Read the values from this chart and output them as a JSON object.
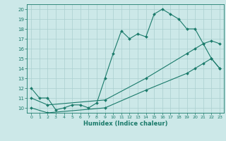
{
  "bg_color": "#cce8e8",
  "grid_color": "#aacfcf",
  "line_color": "#1a7a6a",
  "marker": "D",
  "markersize": 2.0,
  "linewidth": 0.8,
  "series1": {
    "x": [
      0,
      1,
      2,
      3,
      4,
      5,
      6,
      7,
      8,
      9,
      10,
      11,
      12,
      13,
      14,
      15,
      16,
      17,
      18,
      19,
      20,
      21,
      22,
      23
    ],
    "y": [
      12,
      11,
      11,
      9.8,
      10,
      10.3,
      10.3,
      10,
      10.5,
      13,
      15.5,
      17.8,
      17,
      17.5,
      17.2,
      19.5,
      20,
      19.5,
      19,
      18,
      18,
      16.5,
      15,
      14
    ]
  },
  "series2": {
    "x": [
      0,
      2,
      9,
      14,
      19,
      20,
      21,
      22,
      23
    ],
    "y": [
      11,
      10.3,
      10.8,
      13,
      15.5,
      16,
      16.5,
      16.8,
      16.5
    ]
  },
  "series3": {
    "x": [
      0,
      2,
      9,
      14,
      19,
      20,
      21,
      22,
      23
    ],
    "y": [
      10,
      9.5,
      10,
      11.8,
      13.5,
      14,
      14.5,
      15,
      14
    ]
  },
  "xlabel": "Humidex (Indice chaleur)",
  "xlim": [
    -0.5,
    23.5
  ],
  "ylim": [
    9.5,
    20.5
  ],
  "yticks": [
    10,
    11,
    12,
    13,
    14,
    15,
    16,
    17,
    18,
    19,
    20
  ],
  "xticks": [
    0,
    1,
    2,
    3,
    4,
    5,
    6,
    7,
    8,
    9,
    10,
    11,
    12,
    13,
    14,
    15,
    16,
    17,
    18,
    19,
    20,
    21,
    22,
    23
  ]
}
